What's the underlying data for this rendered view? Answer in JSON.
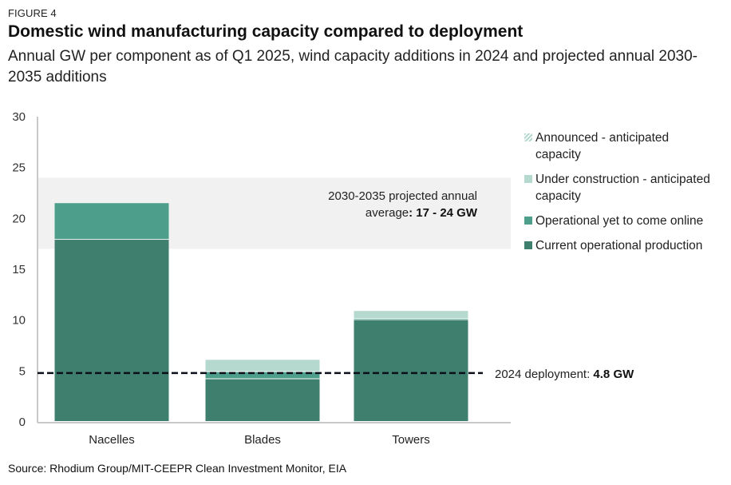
{
  "figure_label": "FIGURE 4",
  "title": "Domestic wind manufacturing capacity compared to deployment",
  "subtitle": "Annual GW per component as of Q1 2025, wind capacity additions in 2024 and projected annual 2030-2035 additions",
  "source": "Source: Rhodium Group/MIT-CEEPR Clean Investment Monitor, EIA",
  "colors": {
    "current_operational": "#3e7f6e",
    "operational_yet_online": "#4d9e8a",
    "under_construction": "#b5d8cf",
    "announced": "#c9e3dc",
    "projection_band": "#f1f1f1",
    "deployment_line": "#0b0f1a",
    "axis": "#c8c8c8"
  },
  "chart_data": {
    "type": "bar",
    "stacked": true,
    "title": "Domestic wind manufacturing capacity compared to deployment",
    "xlabel": "",
    "ylabel": "",
    "ylim": [
      0,
      30
    ],
    "yticks": [
      0,
      5,
      10,
      15,
      20,
      25,
      30
    ],
    "grid": false,
    "legend_position": "right",
    "categories": [
      "Nacelles",
      "Blades",
      "Towers"
    ],
    "series": [
      {
        "name": "Current operational production",
        "key": "current_operational",
        "values": [
          17.9,
          4.2,
          10.0
        ]
      },
      {
        "name": "Operational yet to come online",
        "key": "operational_yet_online",
        "values": [
          3.6,
          0.7,
          0.1
        ]
      },
      {
        "name": "Under construction - anticipated capacity",
        "key": "under_construction",
        "values": [
          0,
          1.2,
          0.8
        ]
      },
      {
        "name": "Announced - anticipated capacity",
        "key": "announced",
        "values": [
          0,
          0,
          0
        ]
      }
    ],
    "annotations": {
      "projection_band": {
        "low": 17,
        "high": 24,
        "label_prefix": "2030-2035 projected annual",
        "label_mid": "average",
        "label_value": ": 17 - 24 GW"
      },
      "deployment_line": {
        "value": 4.8,
        "label_prefix": "2024 deployment: ",
        "label_value": "4.8 GW"
      }
    }
  },
  "legend": [
    {
      "label": "Announced - anticipated capacity",
      "key": "announced",
      "pattern": "hatch"
    },
    {
      "label": "Under construction - anticipated capacity",
      "key": "under_construction",
      "pattern": "solid"
    },
    {
      "label": "Operational yet to come online",
      "key": "operational_yet_online",
      "pattern": "solid"
    },
    {
      "label": "Current operational production",
      "key": "current_operational",
      "pattern": "solid"
    }
  ]
}
